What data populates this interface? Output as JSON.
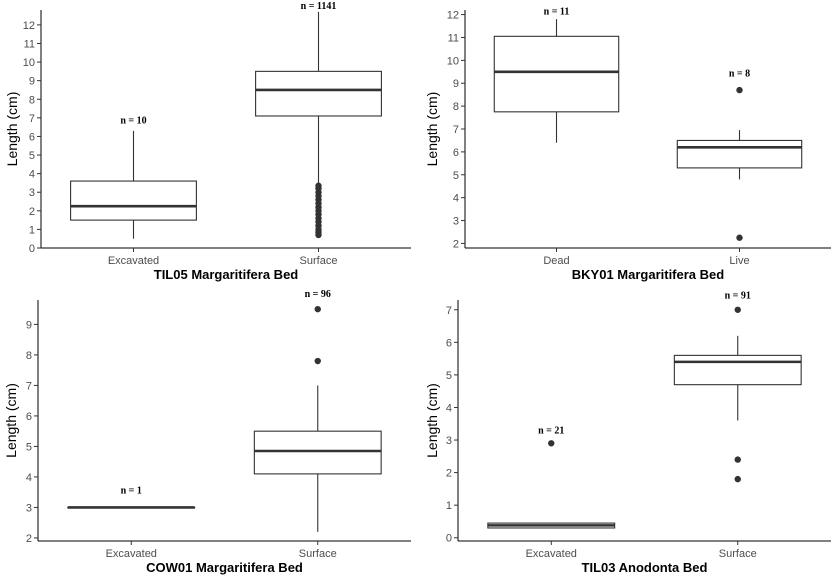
{
  "chart_data": [
    {
      "type": "boxplot",
      "title": "TIL05 Margaritifera Bed",
      "xlabel": "",
      "ylabel": "Length (cm)",
      "ylim": [
        0,
        12.8
      ],
      "yticks": [
        0,
        1,
        2,
        3,
        4,
        5,
        6,
        7,
        8,
        9,
        10,
        11,
        12
      ],
      "categories": [
        "Excavated",
        "Surface"
      ],
      "boxes": [
        {
          "category": "Excavated",
          "min": 0.5,
          "q1": 1.5,
          "median": 2.25,
          "q3": 3.6,
          "max": 6.3,
          "outliers": [],
          "count_label": "n = 10",
          "label_y": 6.7
        },
        {
          "category": "Surface",
          "min": 3.5,
          "q1": 7.1,
          "median": 8.5,
          "q3": 9.5,
          "max": 12.7,
          "outliers": [
            0.7,
            0.85,
            1.0,
            1.2,
            1.4,
            1.6,
            1.8,
            2.0,
            2.2,
            2.4,
            2.6,
            2.8,
            3.0,
            3.2,
            3.35
          ],
          "count_label": "n = 1141",
          "label_y": 12.85
        }
      ]
    },
    {
      "type": "boxplot",
      "title": "BKY01 Margaritifera Bed",
      "xlabel": "",
      "ylabel": "Length (cm)",
      "ylim": [
        1.8,
        12.2
      ],
      "yticks": [
        2,
        3,
        4,
        5,
        6,
        7,
        8,
        9,
        10,
        11,
        12
      ],
      "categories": [
        "Dead",
        "Live"
      ],
      "boxes": [
        {
          "category": "Dead",
          "min": 6.4,
          "q1": 7.75,
          "median": 9.5,
          "q3": 11.05,
          "max": 11.8,
          "outliers": [],
          "count_label": "n = 11",
          "label_y": 12.0
        },
        {
          "category": "Live",
          "min": 4.8,
          "q1": 5.3,
          "median": 6.2,
          "q3": 6.5,
          "max": 6.95,
          "outliers": [
            8.7,
            2.25
          ],
          "count_label": "n = 8",
          "label_y": 9.3
        }
      ]
    },
    {
      "type": "boxplot",
      "title": "COW01 Margaritifera Bed",
      "xlabel": "",
      "ylabel": "Length (cm)",
      "ylim": [
        1.9,
        9.8
      ],
      "yticks": [
        2,
        3,
        4,
        5,
        6,
        7,
        8,
        9
      ],
      "categories": [
        "Excavated",
        "Surface"
      ],
      "boxes": [
        {
          "category": "Excavated",
          "min": 3.0,
          "q1": 3.0,
          "median": 3.0,
          "q3": 3.0,
          "max": 3.0,
          "outliers": [],
          "count_label": "n = 1",
          "label_y": 3.45
        },
        {
          "category": "Surface",
          "min": 2.2,
          "q1": 4.1,
          "median": 4.85,
          "q3": 5.5,
          "max": 7.0,
          "outliers": [
            7.8,
            9.5
          ],
          "count_label": "n = 96",
          "label_y": 9.9
        }
      ]
    },
    {
      "type": "boxplot",
      "title": "TIL03 Anodonta Bed",
      "xlabel": "",
      "ylabel": "Length (cm)",
      "ylim": [
        -0.1,
        7.3
      ],
      "yticks": [
        0,
        1,
        2,
        3,
        4,
        5,
        6,
        7
      ],
      "categories": [
        "Excavated",
        "Surface"
      ],
      "boxes": [
        {
          "category": "Excavated",
          "min": 0.3,
          "q1": 0.3,
          "median": 0.38,
          "q3": 0.45,
          "max": 0.45,
          "outliers": [
            2.9
          ],
          "count_label": "n = 21",
          "label_y": 3.2
        },
        {
          "category": "Surface",
          "min": 3.6,
          "q1": 4.7,
          "median": 5.4,
          "q3": 5.6,
          "max": 6.2,
          "outliers": [
            7.0,
            2.4,
            1.8
          ],
          "count_label": "n = 91",
          "label_y": 7.35
        }
      ]
    }
  ]
}
